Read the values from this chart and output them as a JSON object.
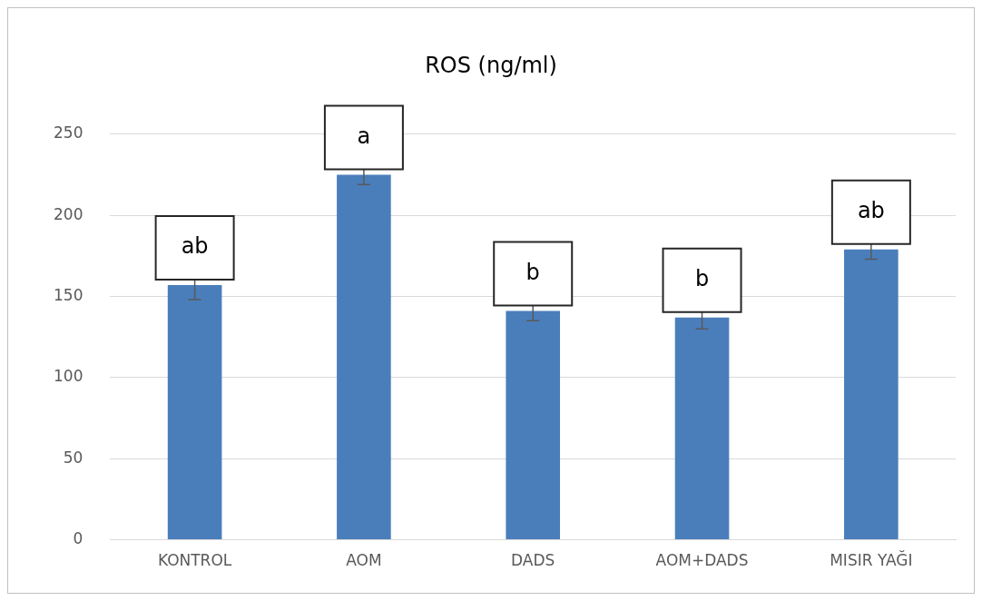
{
  "chart_data": {
    "type": "bar",
    "title": "ROS (ng/ml)",
    "categories": [
      "KONTROL",
      "AOM",
      "DADS",
      "AOM+DADS",
      "MISIR YAĞI"
    ],
    "values": [
      157,
      225,
      141,
      137,
      179
    ],
    "errors": [
      9,
      6,
      6,
      7,
      6
    ],
    "color": "#4a7ebb",
    "ylim": [
      0,
      250
    ],
    "yticks": [
      0,
      50,
      100,
      150,
      200,
      250
    ],
    "grid": "y",
    "legend": false,
    "annotations": [
      "ab",
      "a",
      "b",
      "b",
      "ab"
    ]
  }
}
